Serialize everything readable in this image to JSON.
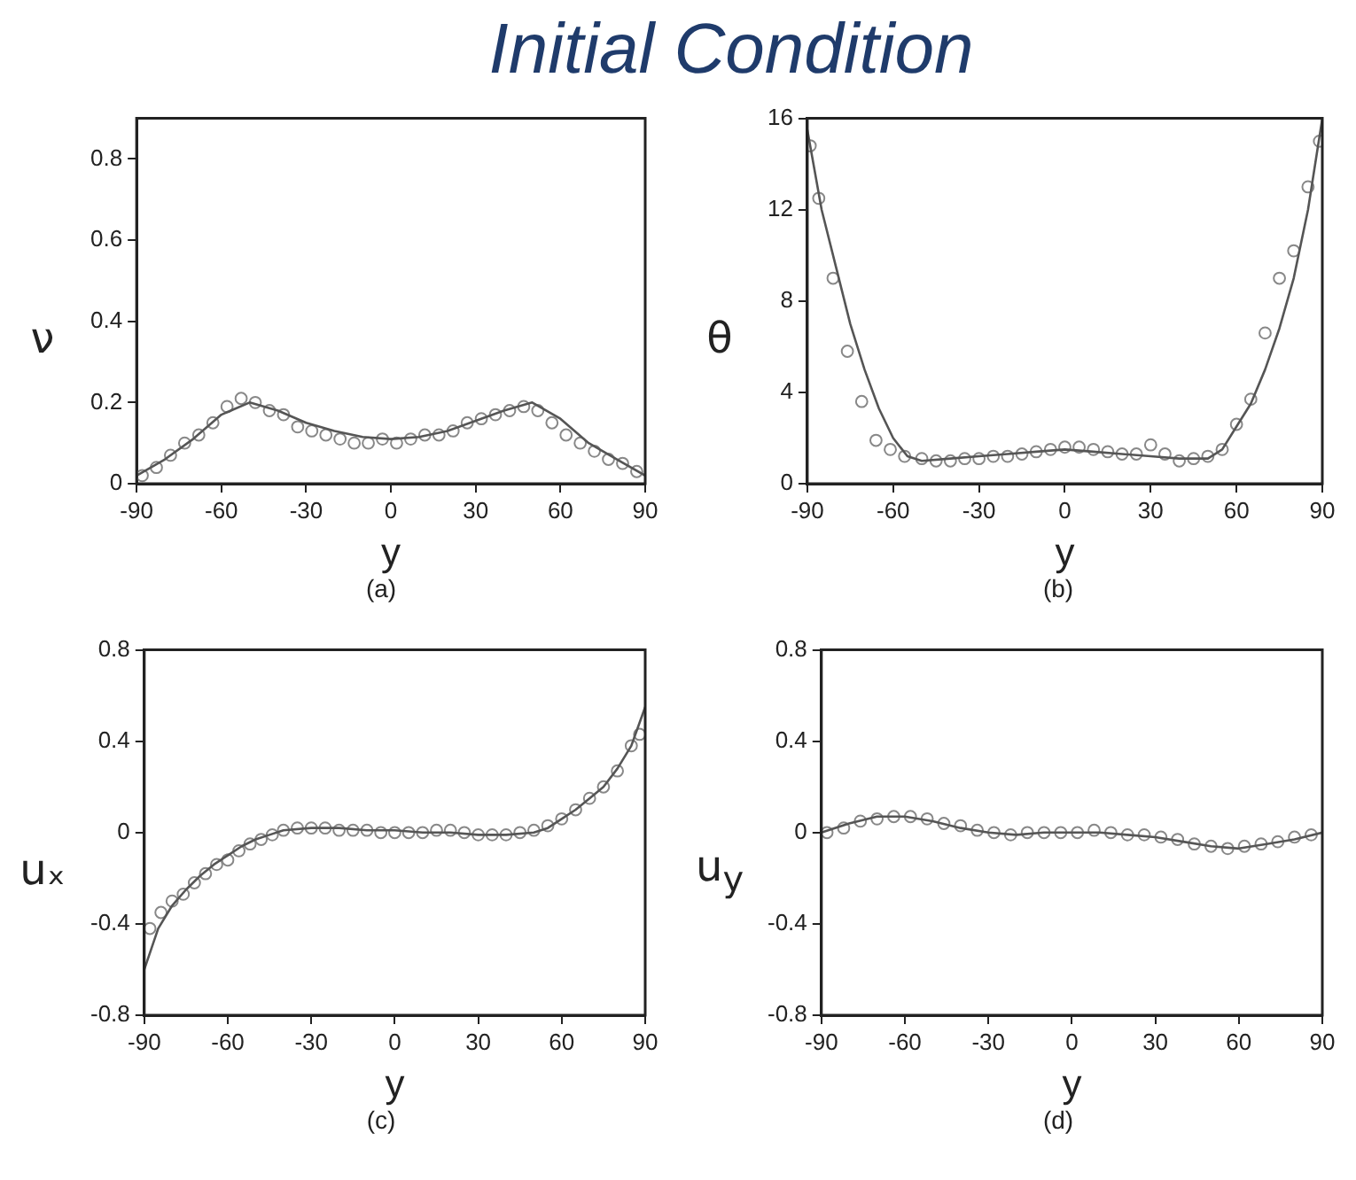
{
  "chart_data": [
    {
      "type": "line",
      "title": "Initial Condition",
      "xlabel": "y",
      "ylabel": "ν",
      "annotations": [
        "(a)"
      ],
      "xlim": [
        -90,
        90
      ],
      "xticks": [
        -90,
        -60,
        -30,
        0,
        30,
        60,
        90
      ],
      "ylim": [
        0,
        0.9
      ],
      "yticks": [
        0,
        0.2,
        0.4,
        0.6,
        0.8
      ],
      "series": [
        {
          "type": "line",
          "color": "#555555",
          "marker": "none",
          "x": [
            -90,
            -80,
            -70,
            -60,
            -50,
            -40,
            -30,
            -20,
            -10,
            0,
            10,
            20,
            30,
            40,
            50,
            60,
            70,
            80,
            90
          ],
          "values": [
            0.02,
            0.06,
            0.11,
            0.17,
            0.2,
            0.18,
            0.15,
            0.13,
            0.115,
            0.11,
            0.115,
            0.13,
            0.155,
            0.18,
            0.2,
            0.16,
            0.1,
            0.06,
            0.02
          ]
        },
        {
          "type": "scatter",
          "color": "#888888",
          "marker": "circle",
          "x": [
            -88,
            -83,
            -78,
            -73,
            -68,
            -63,
            -58,
            -53,
            -48,
            -43,
            -38,
            -33,
            -28,
            -23,
            -18,
            -13,
            -8,
            -3,
            2,
            7,
            12,
            17,
            22,
            27,
            32,
            37,
            42,
            47,
            52,
            57,
            62,
            67,
            72,
            77,
            82,
            87
          ],
          "values": [
            0.02,
            0.04,
            0.07,
            0.1,
            0.12,
            0.15,
            0.19,
            0.21,
            0.2,
            0.18,
            0.17,
            0.14,
            0.13,
            0.12,
            0.11,
            0.1,
            0.1,
            0.11,
            0.1,
            0.11,
            0.12,
            0.12,
            0.13,
            0.15,
            0.16,
            0.17,
            0.18,
            0.19,
            0.18,
            0.15,
            0.12,
            0.1,
            0.08,
            0.06,
            0.05,
            0.03
          ]
        }
      ]
    },
    {
      "type": "line",
      "xlabel": "y",
      "ylabel": "θ",
      "annotations": [
        "(b)"
      ],
      "xlim": [
        -90,
        90
      ],
      "xticks": [
        -90,
        -60,
        -30,
        0,
        30,
        60,
        90
      ],
      "ylim": [
        0,
        16
      ],
      "yticks": [
        0,
        4,
        8,
        12,
        16
      ],
      "series": [
        {
          "type": "line",
          "color": "#555555",
          "marker": "none",
          "x": [
            -90,
            -85,
            -80,
            -75,
            -70,
            -65,
            -60,
            -55,
            -50,
            -40,
            -30,
            -20,
            -10,
            0,
            10,
            20,
            30,
            40,
            50,
            55,
            60,
            65,
            70,
            75,
            80,
            85,
            90
          ],
          "values": [
            15.5,
            12,
            9.5,
            7,
            5,
            3.3,
            2,
            1.2,
            1,
            1.1,
            1.2,
            1.3,
            1.4,
            1.5,
            1.4,
            1.3,
            1.2,
            1.1,
            1.1,
            1.5,
            2.5,
            3.5,
            5,
            6.8,
            9,
            12,
            16
          ]
        },
        {
          "type": "scatter",
          "color": "#888888",
          "marker": "circle",
          "x": [
            -89,
            -86,
            -81,
            -76,
            -71,
            -66,
            -61,
            -56,
            -50,
            -45,
            -40,
            -35,
            -30,
            -25,
            -20,
            -15,
            -10,
            -5,
            0,
            5,
            10,
            15,
            20,
            25,
            30,
            35,
            40,
            45,
            50,
            55,
            60,
            65,
            70,
            75,
            80,
            85,
            89
          ],
          "values": [
            14.8,
            12.5,
            9,
            5.8,
            3.6,
            1.9,
            1.5,
            1.2,
            1.1,
            1,
            1,
            1.1,
            1.1,
            1.2,
            1.2,
            1.3,
            1.4,
            1.5,
            1.6,
            1.6,
            1.5,
            1.4,
            1.3,
            1.3,
            1.7,
            1.3,
            1,
            1.1,
            1.2,
            1.5,
            2.6,
            3.7,
            6.6,
            9,
            10.2,
            13,
            15
          ]
        }
      ]
    },
    {
      "type": "line",
      "xlabel": "y",
      "ylabel": "uₓ",
      "annotations": [
        "(c)"
      ],
      "xlim": [
        -90,
        90
      ],
      "xticks": [
        -90,
        -60,
        -30,
        0,
        30,
        60,
        90
      ],
      "ylim": [
        -0.8,
        0.8
      ],
      "yticks": [
        -0.8,
        -0.4,
        0,
        0.4,
        0.8
      ],
      "series": [
        {
          "type": "line",
          "color": "#555555",
          "marker": "none",
          "x": [
            -90,
            -85,
            -80,
            -75,
            -70,
            -65,
            -60,
            -55,
            -50,
            -45,
            -40,
            -30,
            -20,
            -10,
            0,
            10,
            20,
            30,
            40,
            50,
            55,
            60,
            65,
            70,
            75,
            80,
            85,
            90
          ],
          "values": [
            -0.6,
            -0.42,
            -0.32,
            -0.25,
            -0.19,
            -0.14,
            -0.1,
            -0.06,
            -0.03,
            -0.01,
            0.01,
            0.02,
            0.02,
            0.01,
            0.01,
            0,
            0,
            -0.01,
            -0.01,
            0,
            0.02,
            0.06,
            0.1,
            0.15,
            0.2,
            0.28,
            0.38,
            0.55
          ]
        },
        {
          "type": "scatter",
          "color": "#888888",
          "marker": "circle",
          "x": [
            -88,
            -84,
            -80,
            -76,
            -72,
            -68,
            -64,
            -60,
            -56,
            -52,
            -48,
            -44,
            -40,
            -35,
            -30,
            -25,
            -20,
            -15,
            -10,
            -5,
            0,
            5,
            10,
            15,
            20,
            25,
            30,
            35,
            40,
            45,
            50,
            55,
            60,
            65,
            70,
            75,
            80,
            85,
            88
          ],
          "values": [
            -0.42,
            -0.35,
            -0.3,
            -0.27,
            -0.22,
            -0.18,
            -0.14,
            -0.12,
            -0.08,
            -0.05,
            -0.03,
            -0.01,
            0.01,
            0.02,
            0.02,
            0.02,
            0.01,
            0.01,
            0.01,
            0,
            0,
            0,
            0,
            0.01,
            0.01,
            0,
            -0.01,
            -0.01,
            -0.01,
            0,
            0.01,
            0.03,
            0.06,
            0.1,
            0.15,
            0.2,
            0.27,
            0.38,
            0.43
          ]
        }
      ]
    },
    {
      "type": "line",
      "xlabel": "y",
      "ylabel": "u$_{y}$",
      "annotations": [
        "(d)"
      ],
      "xlim": [
        -90,
        90
      ],
      "xticks": [
        -90,
        -60,
        -30,
        0,
        30,
        60,
        90
      ],
      "ylim": [
        -0.8,
        0.8
      ],
      "yticks": [
        -0.8,
        -0.4,
        0,
        0.4,
        0.8
      ],
      "series": [
        {
          "type": "line",
          "color": "#555555",
          "marker": "none",
          "x": [
            -90,
            -80,
            -70,
            -60,
            -50,
            -40,
            -30,
            -20,
            -10,
            0,
            10,
            20,
            30,
            40,
            50,
            60,
            70,
            80,
            90
          ],
          "values": [
            0,
            0.04,
            0.07,
            0.07,
            0.05,
            0.02,
            0,
            -0.01,
            0,
            0,
            0,
            -0.01,
            -0.02,
            -0.04,
            -0.06,
            -0.07,
            -0.05,
            -0.03,
            0
          ]
        },
        {
          "type": "scatter",
          "color": "#888888",
          "marker": "circle",
          "x": [
            -88,
            -82,
            -76,
            -70,
            -64,
            -58,
            -52,
            -46,
            -40,
            -34,
            -28,
            -22,
            -16,
            -10,
            -4,
            2,
            8,
            14,
            20,
            26,
            32,
            38,
            44,
            50,
            56,
            62,
            68,
            74,
            80,
            86
          ],
          "values": [
            0,
            0.02,
            0.05,
            0.06,
            0.07,
            0.07,
            0.06,
            0.04,
            0.03,
            0.01,
            0,
            -0.01,
            0,
            0,
            0,
            0,
            0.01,
            0,
            -0.01,
            -0.01,
            -0.02,
            -0.03,
            -0.05,
            -0.06,
            -0.07,
            -0.06,
            -0.05,
            -0.04,
            -0.02,
            -0.01
          ]
        }
      ]
    }
  ]
}
